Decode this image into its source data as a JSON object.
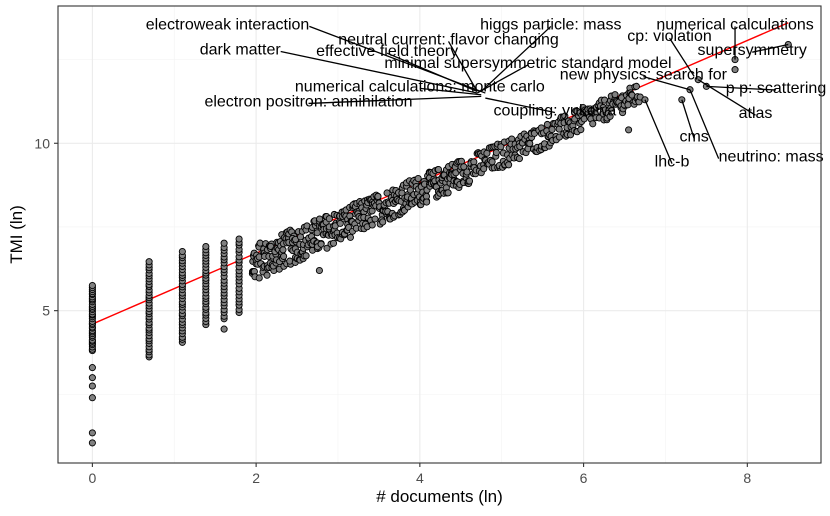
{
  "chart_data": {
    "type": "scatter",
    "title": "",
    "xlabel": "# documents (ln)",
    "ylabel": "TMI (ln)",
    "xlim": [
      -0.42,
      8.9
    ],
    "ylim": [
      0.45,
      14.1
    ],
    "x_ticks": [
      0,
      2,
      4,
      6,
      8
    ],
    "y_ticks": [
      5,
      10
    ],
    "grid": true,
    "point_color": "#808080",
    "fit_color": "#ff0000",
    "fit_line": {
      "x": [
        0,
        8.5
      ],
      "y": [
        4.6,
        13.6
      ]
    },
    "clusters": [
      {
        "x": 0,
        "y_min": 3.8,
        "y_max": 5.75,
        "n": 36
      },
      {
        "x": 0.693,
        "y_min": 3.6,
        "y_max": 6.45,
        "n": 36
      },
      {
        "x": 1.099,
        "y_min": 4.05,
        "y_max": 6.75,
        "n": 32
      },
      {
        "x": 1.386,
        "y_min": 4.6,
        "y_max": 6.9,
        "n": 28
      },
      {
        "x": 1.609,
        "y_min": 4.75,
        "y_max": 7.0,
        "n": 24
      },
      {
        "x": 1.792,
        "y_min": 4.95,
        "y_max": 7.15,
        "n": 22
      }
    ],
    "outlier_points": [
      {
        "x": 0,
        "y": 1.05
      },
      {
        "x": 0,
        "y": 1.35
      },
      {
        "x": 0,
        "y": 2.4
      },
      {
        "x": 0,
        "y": 2.75
      },
      {
        "x": 0,
        "y": 3.0
      },
      {
        "x": 0,
        "y": 3.3
      },
      {
        "x": 1.609,
        "y": 4.45
      },
      {
        "x": 2.773,
        "y": 6.2
      },
      {
        "x": 6.55,
        "y": 10.4
      },
      {
        "x": 6.75,
        "y": 11.3
      },
      {
        "x": 7.2,
        "y": 11.3
      },
      {
        "x": 7.3,
        "y": 11.6
      },
      {
        "x": 7.4,
        "y": 11.9
      },
      {
        "x": 7.5,
        "y": 11.7
      },
      {
        "x": 7.85,
        "y": 12.2
      },
      {
        "x": 7.85,
        "y": 12.5
      },
      {
        "x": 8.5,
        "y": 12.95
      }
    ],
    "annotations": [
      {
        "text": "electroweak interaction",
        "x": 4.8,
        "y": 11.5,
        "lx": 2.65,
        "ly": 13.55,
        "anchor": "end"
      },
      {
        "text": "higgs particle: mass",
        "x": 4.75,
        "y": 11.55,
        "lx": 5.6,
        "ly": 13.55,
        "anchor": "middle"
      },
      {
        "text": "numerical calculations",
        "x": 7.85,
        "y": 12.5,
        "lx": 7.85,
        "ly": 13.55,
        "anchor": "middle"
      },
      {
        "text": "neutral current: flavor changing",
        "x": 4.7,
        "y": 11.55,
        "lx": 4.35,
        "ly": 13.1,
        "anchor": "middle"
      },
      {
        "text": "cp: violation",
        "x": 7.35,
        "y": 12.0,
        "lx": 7.05,
        "ly": 13.2,
        "anchor": "middle"
      },
      {
        "text": "dark matter",
        "x": 4.7,
        "y": 11.5,
        "lx": 2.3,
        "ly": 12.8,
        "anchor": "end"
      },
      {
        "text": "effective field theory",
        "x": 4.7,
        "y": 11.55,
        "lx": 3.6,
        "ly": 12.75,
        "anchor": "middle"
      },
      {
        "text": "supersymmetry",
        "x": 8.5,
        "y": 12.95,
        "lx": 8.06,
        "ly": 12.78,
        "anchor": "middle"
      },
      {
        "text": "minimal supersymmetric standard model",
        "x": 4.7,
        "y": 11.5,
        "lx": 5.32,
        "ly": 12.4,
        "anchor": "middle"
      },
      {
        "text": "new physics: search for",
        "x": 7.3,
        "y": 11.6,
        "lx": 6.73,
        "ly": 12.05,
        "anchor": "middle"
      },
      {
        "text": "numerical calculations: monte carlo",
        "x": 4.75,
        "y": 11.45,
        "lx": 4.0,
        "ly": 11.7,
        "anchor": "middle"
      },
      {
        "text": "p p: scattering",
        "x": 7.5,
        "y": 11.7,
        "lx": 8.35,
        "ly": 11.65,
        "anchor": "middle"
      },
      {
        "text": "electron positron: annihilation",
        "x": 4.75,
        "y": 11.4,
        "lx": 2.64,
        "ly": 11.25,
        "anchor": "middle"
      },
      {
        "text": "coupling: yukawa",
        "x": 4.8,
        "y": 11.35,
        "lx": 5.65,
        "ly": 10.98,
        "anchor": "middle"
      },
      {
        "text": "atlas",
        "x": 7.4,
        "y": 11.9,
        "lx": 8.1,
        "ly": 10.9,
        "anchor": "middle"
      },
      {
        "text": "cms",
        "x": 7.2,
        "y": 11.3,
        "lx": 7.35,
        "ly": 10.2,
        "anchor": "middle"
      },
      {
        "text": "neutrino: mass",
        "x": 7.3,
        "y": 11.6,
        "lx": 7.65,
        "ly": 9.6,
        "anchor": "start"
      },
      {
        "text": "lhc-b",
        "x": 6.75,
        "y": 11.3,
        "lx": 7.08,
        "ly": 9.45,
        "anchor": "middle"
      }
    ]
  }
}
